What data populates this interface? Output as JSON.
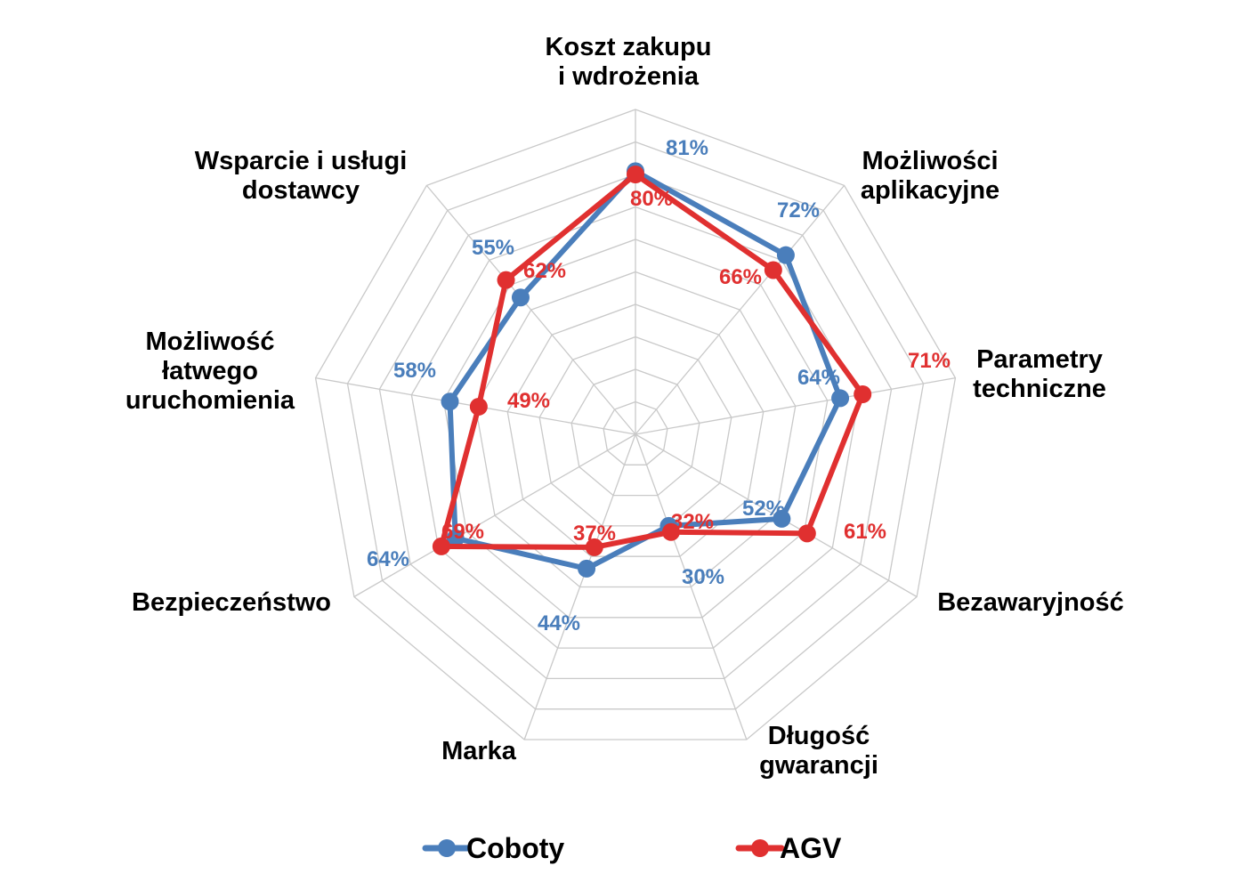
{
  "chart_data": {
    "type": "radar",
    "categories": [
      [
        "Koszt zakupu",
        "i wdrożenia"
      ],
      [
        "Możliwości",
        "aplikacyjne"
      ],
      [
        "Parametry",
        "techniczne"
      ],
      [
        "Bezawaryjność"
      ],
      [
        "Długość",
        "gwarancji"
      ],
      [
        "Marka"
      ],
      [
        "Bezpieczeństwo"
      ],
      [
        "Możliwość",
        "łatwego",
        "uruchomienia"
      ],
      [
        "Wsparcie i usługi",
        "dostawcy"
      ]
    ],
    "series": [
      {
        "name": "Coboty",
        "color": "#4A7EBB",
        "values": [
          81,
          72,
          64,
          52,
          30,
          44,
          64,
          58,
          55
        ],
        "labels": [
          "81%",
          "72%",
          "64%",
          "52%",
          "30%",
          "44%",
          "64%",
          "58%",
          "55%"
        ]
      },
      {
        "name": "AGV",
        "color": "#E03030",
        "values": [
          80,
          66,
          71,
          61,
          32,
          37,
          69,
          49,
          62
        ],
        "labels": [
          "80%",
          "66%",
          "71%",
          "61%",
          "32%",
          "37%",
          "69%",
          "49%",
          "62%"
        ]
      }
    ],
    "rmax": 100,
    "grid_step": 10,
    "grid": true,
    "legend_position": "bottom"
  }
}
